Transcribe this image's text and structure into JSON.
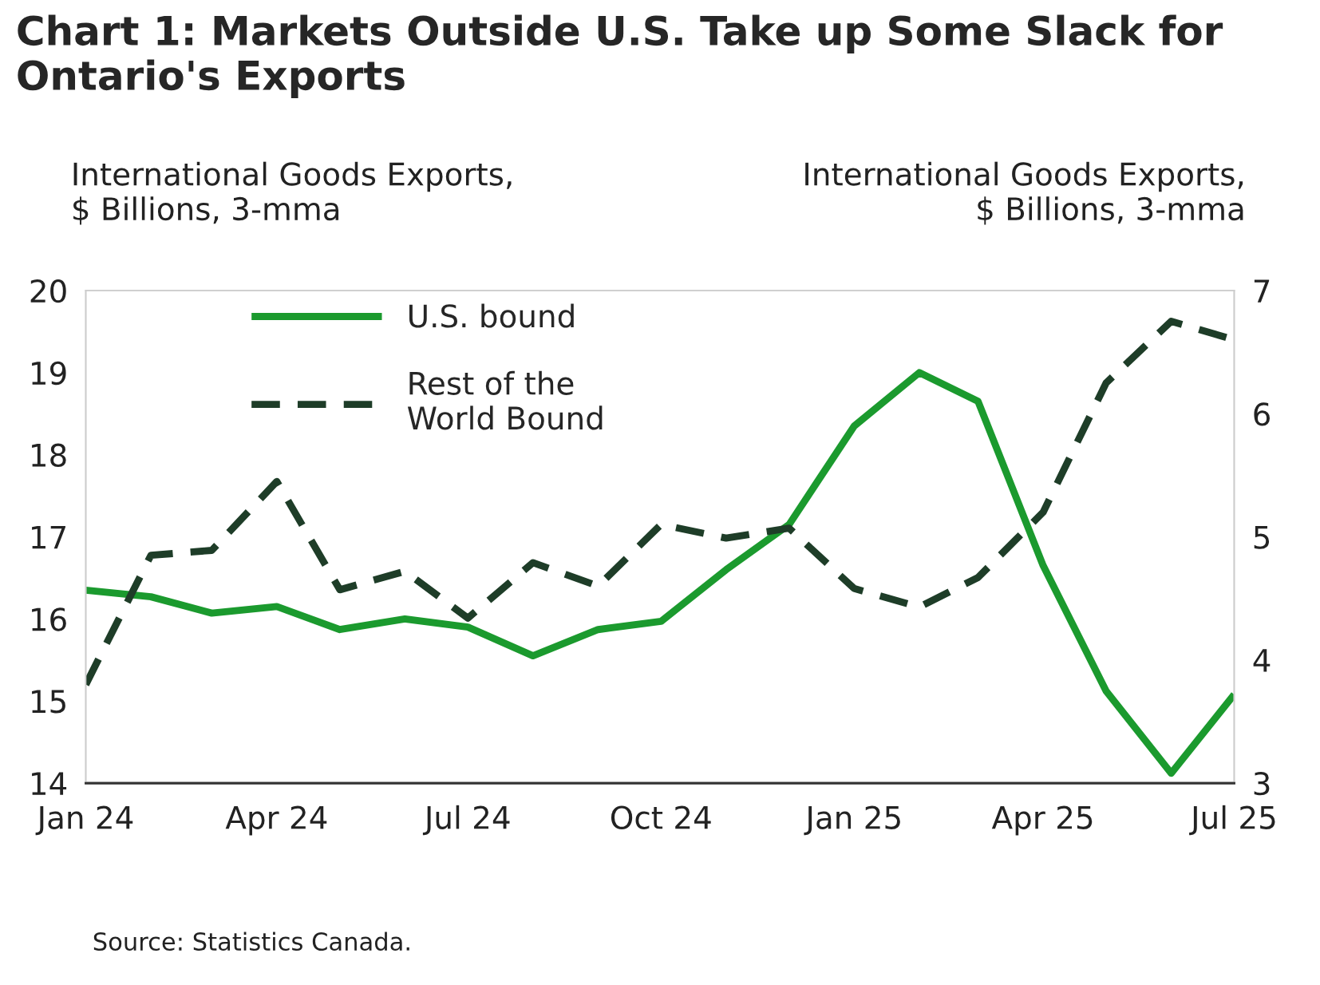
{
  "chart_data": {
    "type": "line",
    "title": "Chart 1: Markets Outside U.S. Take up Some Slack for Ontario's Exports",
    "ylabel": "International Goods Exports,\n$ Billions, 3-mma",
    "y2label": "International Goods Exports,\n$ Billions, 3-mma",
    "annotations": [
      "Source: Statistics Canada."
    ],
    "x": [
      "2024-01",
      "2024-02",
      "2024-03",
      "2024-04",
      "2024-05",
      "2024-06",
      "2024-07",
      "2024-08",
      "2024-09",
      "2024-10",
      "2024-11",
      "2024-12",
      "2025-01",
      "2025-02",
      "2025-03",
      "2025-04",
      "2025-05",
      "2025-06",
      "2025-07"
    ],
    "series": [
      {
        "name": "U.S. bound",
        "color": "#1b9a2e",
        "line_style": "solid",
        "values": [
          16.35,
          16.27,
          16.07,
          16.15,
          15.87,
          16.0,
          15.9,
          15.55,
          15.87,
          15.97,
          16.6,
          17.15,
          18.35,
          19.0,
          18.65,
          16.65,
          15.12,
          14.12,
          15.08
        ]
      },
      {
        "name": "Rest of the\nWorld Bound",
        "color": "#1e3d28",
        "line_style": "dashed",
        "axis": "y2",
        "values": [
          3.8,
          4.85,
          4.89,
          5.45,
          4.57,
          4.72,
          4.34,
          4.79,
          4.6,
          5.1,
          4.99,
          5.07,
          4.58,
          4.43,
          4.67,
          5.2,
          6.25,
          6.75,
          6.6
        ]
      }
    ],
    "xlim": [
      "2024-01",
      "2025-07"
    ],
    "xticks": [
      {
        "value": "2024-01",
        "label": "Jan 24"
      },
      {
        "value": "2024-04",
        "label": "Apr 24"
      },
      {
        "value": "2024-07",
        "label": "Jul 24"
      },
      {
        "value": "2024-10",
        "label": "Oct 24"
      },
      {
        "value": "2025-01",
        "label": "Jan 25"
      },
      {
        "value": "2025-04",
        "label": "Apr 25"
      },
      {
        "value": "2025-07",
        "label": "Jul 25"
      }
    ],
    "ylim": [
      14,
      20
    ],
    "yticks": [
      14,
      15,
      16,
      17,
      18,
      19,
      20
    ],
    "y2lim": [
      3,
      7
    ],
    "y2ticks": [
      3,
      4,
      5,
      6,
      7
    ],
    "grid": false,
    "legend": "top left",
    "marker": "none"
  }
}
